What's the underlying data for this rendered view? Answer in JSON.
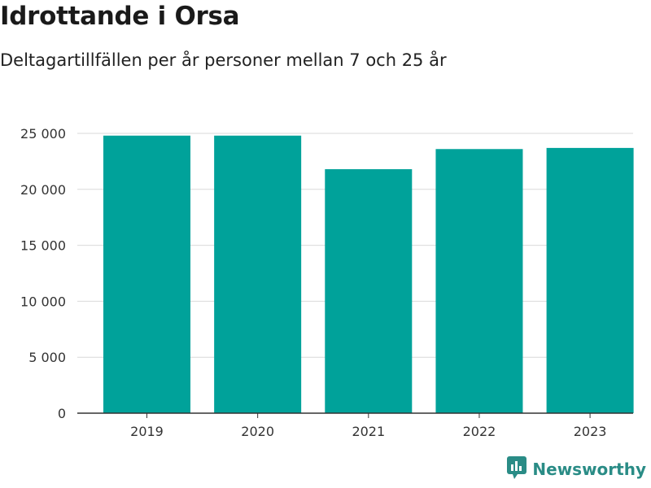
{
  "title": "Idrottande i Orsa",
  "subtitle": "Deltagartillfällen per år personer mellan 7 och 25 år",
  "brand": {
    "name": "Newsworthy",
    "icon": "newsworthy-logo-icon",
    "color": "#2a8c86"
  },
  "chart_data": {
    "type": "bar",
    "categories": [
      "2019",
      "2020",
      "2021",
      "2022",
      "2023"
    ],
    "values": [
      24800,
      24800,
      21800,
      23600,
      23700
    ],
    "ylim": [
      0,
      25000
    ],
    "yticks": [
      0,
      5000,
      10000,
      15000,
      20000,
      25000
    ],
    "ytick_labels": [
      "0",
      "5 000",
      "10 000",
      "15 000",
      "20 000",
      "25 000"
    ],
    "bar_color": "#00a29a",
    "grid": true,
    "title": "Idrottande i Orsa",
    "subtitle": "Deltagartillfällen per år personer mellan 7 och 25 år",
    "xlabel": "",
    "ylabel": ""
  }
}
